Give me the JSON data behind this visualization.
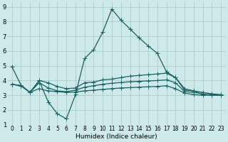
{
  "xlabel": "Humidex (Indice chaleur)",
  "xlim": [
    -0.5,
    23.5
  ],
  "ylim": [
    1,
    9.3
  ],
  "xticks": [
    0,
    1,
    2,
    3,
    4,
    5,
    6,
    7,
    8,
    9,
    10,
    11,
    12,
    13,
    14,
    15,
    16,
    17,
    18,
    19,
    20,
    21,
    22,
    23
  ],
  "yticks": [
    1,
    2,
    3,
    4,
    5,
    6,
    7,
    8,
    9
  ],
  "bg_color": "#cde9e9",
  "grid_color": "#aacccc",
  "line_color": "#1a6060",
  "lines": [
    {
      "x": [
        0,
        1,
        2,
        3,
        4,
        5,
        6,
        7,
        8,
        9,
        10,
        11,
        12,
        13,
        14,
        15,
        16,
        17,
        18,
        19,
        20,
        21,
        22,
        23
      ],
      "y": [
        4.95,
        3.7,
        3.2,
        4.0,
        2.55,
        1.75,
        1.4,
        3.05,
        5.5,
        6.1,
        7.3,
        8.85,
        8.1,
        7.5,
        6.9,
        6.35,
        5.85,
        4.6,
        4.2,
        3.45,
        3.3,
        3.05,
        null,
        null
      ]
    },
    {
      "x": [
        0,
        1,
        2,
        3,
        4,
        5,
        6,
        7,
        8,
        9,
        10,
        11,
        12,
        13,
        14,
        15,
        16,
        17,
        18,
        19,
        20,
        21,
        22,
        23
      ],
      "y": [
        3.75,
        3.65,
        3.2,
        4.0,
        3.85,
        3.6,
        3.45,
        3.5,
        3.85,
        3.9,
        4.05,
        4.1,
        4.2,
        4.3,
        4.35,
        4.4,
        4.45,
        4.5,
        4.2,
        3.35,
        3.3,
        3.2,
        3.1,
        3.05
      ]
    },
    {
      "x": [
        0,
        1,
        2,
        3,
        4,
        5,
        6,
        7,
        8,
        9,
        10,
        11,
        12,
        13,
        14,
        15,
        16,
        17,
        18,
        19,
        20,
        21,
        22,
        23
      ],
      "y": [
        3.75,
        3.65,
        3.2,
        3.85,
        3.5,
        3.3,
        3.25,
        3.35,
        3.55,
        3.65,
        3.75,
        3.82,
        3.87,
        3.92,
        3.95,
        3.98,
        4.0,
        4.05,
        3.85,
        3.25,
        3.2,
        3.1,
        3.05,
        3.0
      ]
    },
    {
      "x": [
        0,
        1,
        2,
        3,
        4,
        5,
        6,
        7,
        8,
        9,
        10,
        11,
        12,
        13,
        14,
        15,
        16,
        17,
        18,
        19,
        20,
        21,
        22,
        23
      ],
      "y": [
        3.75,
        3.65,
        3.2,
        3.45,
        3.3,
        3.25,
        3.2,
        3.22,
        3.3,
        3.35,
        3.4,
        3.45,
        3.5,
        3.52,
        3.55,
        3.58,
        3.6,
        3.65,
        3.45,
        3.15,
        3.05,
        3.0,
        3.0,
        3.0
      ]
    }
  ],
  "xlabel_fontsize": 6.5,
  "tick_fontsize": 5.5,
  "ytick_fontsize": 6.0,
  "linewidth": 0.9,
  "markersize": 2.2
}
